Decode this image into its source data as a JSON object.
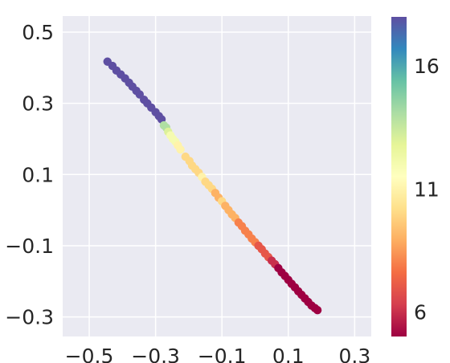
{
  "chart_data": {
    "type": "scatter",
    "title": "",
    "xlabel": "",
    "ylabel": "",
    "xlim": [
      -0.58,
      0.35
    ],
    "ylim": [
      -0.355,
      0.545
    ],
    "xticks": [
      -0.5,
      -0.3,
      -0.1,
      0.1,
      0.3
    ],
    "yticks": [
      0.5,
      0.3,
      0.1,
      -0.1,
      -0.3
    ],
    "xtick_labels": [
      "−0.5",
      "−0.3",
      "−0.1",
      "0.1",
      "0.3"
    ],
    "ytick_labels": [
      "0.5",
      "0.3",
      "0.1",
      "−0.1",
      "−0.3"
    ],
    "grid": true,
    "colormap": "Spectral",
    "color_range": [
      5,
      18
    ],
    "colorbar_ticks": [
      16,
      11,
      6
    ],
    "colorbar_tick_labels": [
      "16",
      "11",
      "6"
    ],
    "background_color": "#eaeaf2",
    "grid_color": "#ffffff",
    "points": [
      {
        "x": -0.445,
        "y": 0.417,
        "c": 18
      },
      {
        "x": -0.43,
        "y": 0.405,
        "c": 18
      },
      {
        "x": -0.418,
        "y": 0.392,
        "c": 18
      },
      {
        "x": -0.405,
        "y": 0.381,
        "c": 18
      },
      {
        "x": -0.392,
        "y": 0.37,
        "c": 18
      },
      {
        "x": -0.38,
        "y": 0.358,
        "c": 18
      },
      {
        "x": -0.37,
        "y": 0.347,
        "c": 18
      },
      {
        "x": -0.358,
        "y": 0.335,
        "c": 18
      },
      {
        "x": -0.348,
        "y": 0.325,
        "c": 18
      },
      {
        "x": -0.335,
        "y": 0.31,
        "c": 18
      },
      {
        "x": -0.325,
        "y": 0.3,
        "c": 18
      },
      {
        "x": -0.313,
        "y": 0.288,
        "c": 18
      },
      {
        "x": -0.3,
        "y": 0.275,
        "c": 18
      },
      {
        "x": -0.29,
        "y": 0.264,
        "c": 18
      },
      {
        "x": -0.282,
        "y": 0.255,
        "c": 18
      },
      {
        "x": -0.275,
        "y": 0.238,
        "c": 14
      },
      {
        "x": -0.268,
        "y": 0.232,
        "c": 14
      },
      {
        "x": -0.262,
        "y": 0.22,
        "c": 13
      },
      {
        "x": -0.255,
        "y": 0.21,
        "c": 12
      },
      {
        "x": -0.248,
        "y": 0.2,
        "c": 12
      },
      {
        "x": -0.24,
        "y": 0.192,
        "c": 12
      },
      {
        "x": -0.233,
        "y": 0.182,
        "c": 11
      },
      {
        "x": -0.225,
        "y": 0.17,
        "c": 11
      },
      {
        "x": -0.21,
        "y": 0.15,
        "c": 10
      },
      {
        "x": -0.198,
        "y": 0.138,
        "c": 10
      },
      {
        "x": -0.19,
        "y": 0.125,
        "c": 10
      },
      {
        "x": -0.18,
        "y": 0.115,
        "c": 10
      },
      {
        "x": -0.17,
        "y": 0.105,
        "c": 10
      },
      {
        "x": -0.16,
        "y": 0.093,
        "c": 11
      },
      {
        "x": -0.15,
        "y": 0.08,
        "c": 10
      },
      {
        "x": -0.14,
        "y": 0.07,
        "c": 10
      },
      {
        "x": -0.13,
        "y": 0.06,
        "c": 10
      },
      {
        "x": -0.12,
        "y": 0.048,
        "c": 9
      },
      {
        "x": -0.11,
        "y": 0.035,
        "c": 9
      },
      {
        "x": -0.1,
        "y": 0.025,
        "c": 10
      },
      {
        "x": -0.09,
        "y": 0.012,
        "c": 9
      },
      {
        "x": -0.08,
        "y": 0.0,
        "c": 9
      },
      {
        "x": -0.07,
        "y": -0.012,
        "c": 9
      },
      {
        "x": -0.06,
        "y": -0.022,
        "c": 9
      },
      {
        "x": -0.05,
        "y": -0.035,
        "c": 8
      },
      {
        "x": -0.04,
        "y": -0.045,
        "c": 8
      },
      {
        "x": -0.03,
        "y": -0.058,
        "c": 8
      },
      {
        "x": -0.02,
        "y": -0.068,
        "c": 8
      },
      {
        "x": -0.01,
        "y": -0.08,
        "c": 8
      },
      {
        "x": 0.0,
        "y": -0.09,
        "c": 8
      },
      {
        "x": 0.01,
        "y": -0.1,
        "c": 7
      },
      {
        "x": 0.02,
        "y": -0.11,
        "c": 7
      },
      {
        "x": 0.03,
        "y": -0.122,
        "c": 7
      },
      {
        "x": 0.04,
        "y": -0.132,
        "c": 7
      },
      {
        "x": 0.05,
        "y": -0.142,
        "c": 6
      },
      {
        "x": 0.06,
        "y": -0.152,
        "c": 6
      },
      {
        "x": 0.07,
        "y": -0.163,
        "c": 5
      },
      {
        "x": 0.08,
        "y": -0.175,
        "c": 5
      },
      {
        "x": 0.09,
        "y": -0.185,
        "c": 5
      },
      {
        "x": 0.1,
        "y": -0.196,
        "c": 5
      },
      {
        "x": 0.11,
        "y": -0.207,
        "c": 5
      },
      {
        "x": 0.12,
        "y": -0.217,
        "c": 5
      },
      {
        "x": 0.13,
        "y": -0.228,
        "c": 5
      },
      {
        "x": 0.14,
        "y": -0.238,
        "c": 5
      },
      {
        "x": 0.15,
        "y": -0.248,
        "c": 5
      },
      {
        "x": 0.16,
        "y": -0.258,
        "c": 5
      },
      {
        "x": 0.17,
        "y": -0.268,
        "c": 5
      },
      {
        "x": 0.18,
        "y": -0.275,
        "c": 5
      },
      {
        "x": 0.188,
        "y": -0.281,
        "c": 5
      }
    ]
  }
}
